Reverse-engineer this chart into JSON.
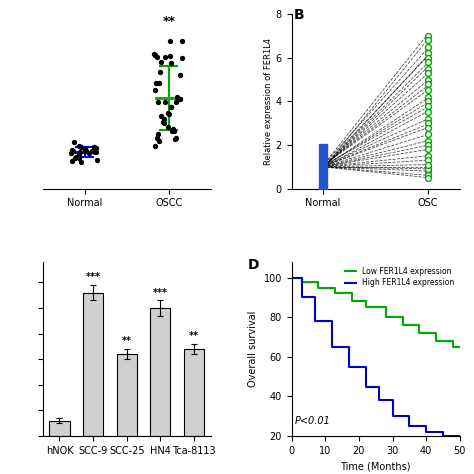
{
  "panel_A": {
    "normal_color": "#0000ff",
    "oscc_color": "#00aa00",
    "dot_color": "#000000",
    "significance": "**"
  },
  "panel_B": {
    "normal_values": [
      1.0,
      1.0,
      1.0,
      1.0,
      1.0,
      1.0,
      1.0,
      1.0,
      1.0,
      1.0,
      1.0,
      1.0,
      1.0,
      1.0,
      1.0,
      1.0,
      1.0,
      1.0,
      1.0,
      1.0,
      1.0,
      1.0,
      1.0,
      1.0,
      1.0,
      1.0,
      1.0,
      1.0,
      1.0,
      1.0
    ],
    "oscc_values": [
      7.0,
      6.8,
      6.5,
      6.2,
      6.0,
      5.8,
      5.5,
      5.3,
      5.0,
      4.8,
      4.5,
      4.2,
      4.0,
      3.8,
      3.5,
      3.2,
      3.0,
      2.8,
      2.5,
      2.2,
      2.0,
      1.8,
      1.5,
      1.3,
      1.0,
      0.8,
      0.6,
      0.9,
      1.1,
      0.5
    ],
    "ylabel": "Relative expression of FER1L4",
    "panel_label": "B",
    "ylim": [
      0,
      8
    ],
    "oscc_color": "#00aa00",
    "normal_bar_color": "#2255cc"
  },
  "panel_C": {
    "categories": [
      "hNOK",
      "SCC-9",
      "SCC-25",
      "HN4",
      "Tca-8113"
    ],
    "values": [
      0.3,
      2.8,
      1.6,
      2.5,
      1.7
    ],
    "errors": [
      0.05,
      0.15,
      0.1,
      0.15,
      0.1
    ],
    "bar_color": "#d0d0d0",
    "edge_color": "#000000",
    "significance": [
      "",
      "***",
      "**",
      "***",
      "**"
    ]
  },
  "panel_D": {
    "panel_label": "D",
    "low_label": "Low FER1L4 expression",
    "high_label": "High FER1L4 expression",
    "low_color": "#00aa00",
    "high_color": "#0000cc",
    "xlabel": "Time (Months)",
    "ylabel": "Overall survival",
    "pvalue": "P<0.01",
    "low_times": [
      0,
      3,
      8,
      13,
      18,
      22,
      28,
      33,
      38,
      43,
      48,
      50
    ],
    "low_survival": [
      100,
      98,
      95,
      92,
      88,
      85,
      80,
      76,
      72,
      68,
      65,
      65
    ],
    "high_times": [
      0,
      3,
      7,
      12,
      17,
      22,
      26,
      30,
      35,
      40,
      45,
      50
    ],
    "high_survival": [
      100,
      90,
      78,
      65,
      55,
      45,
      38,
      30,
      25,
      22,
      20,
      20
    ]
  }
}
